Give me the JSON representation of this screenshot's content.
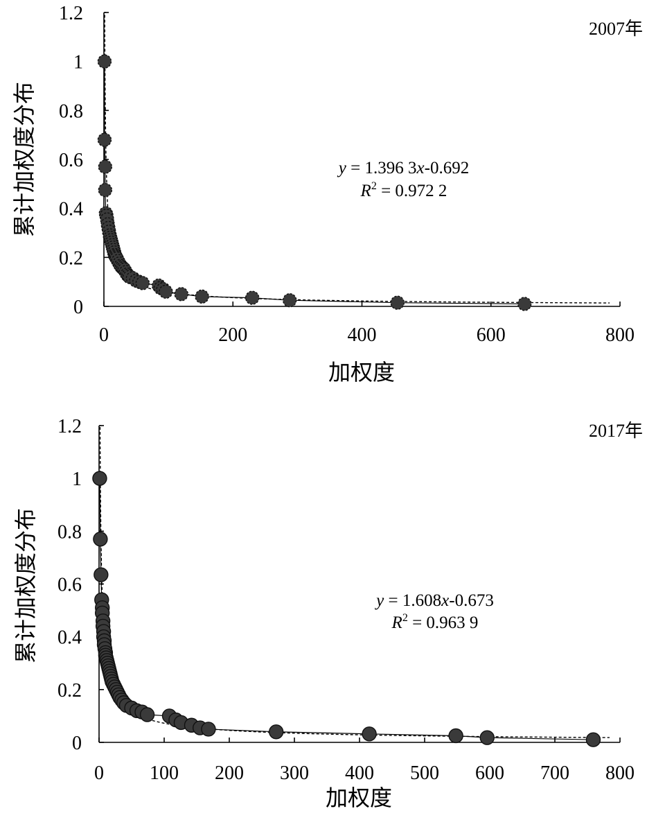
{
  "chart_data": [
    {
      "type": "scatter",
      "year_label": "2007年",
      "xlabel": "加权度",
      "ylabel": "累计加权度分布",
      "xlim": [
        0,
        800
      ],
      "ylim": [
        0,
        1.2
      ],
      "xticks": [
        "0",
        "200",
        "400",
        "600",
        "800"
      ],
      "yticks": [
        "0",
        "0.2",
        "0.4",
        "0.6",
        "0.8",
        "1",
        "1.2"
      ],
      "equation": {
        "y_italic": "y",
        "eq_mid": " = 1.396 3",
        "x_italic": "x",
        "exponent": "-0.692",
        "r_italic": "R",
        "r_sup": "2",
        "r_rest": " = 0.972 2"
      },
      "fit": {
        "a": 1.3963,
        "b": -0.692
      },
      "marker_style": "dashed",
      "x": [
        1,
        1,
        2,
        2,
        3,
        4,
        5,
        6,
        7,
        8,
        9,
        10,
        11,
        12,
        13,
        14,
        15,
        16,
        17,
        18,
        19,
        20,
        22,
        24,
        26,
        28,
        30,
        32,
        34,
        36,
        38,
        40,
        45,
        50,
        55,
        60,
        85,
        88,
        92,
        96,
        120,
        152,
        230,
        288,
        455,
        652
      ],
      "y": [
        1.0,
        0.68,
        0.57,
        0.475,
        0.38,
        0.37,
        0.355,
        0.335,
        0.32,
        0.305,
        0.29,
        0.28,
        0.27,
        0.26,
        0.25,
        0.24,
        0.23,
        0.22,
        0.21,
        0.205,
        0.2,
        0.195,
        0.185,
        0.175,
        0.165,
        0.16,
        0.155,
        0.15,
        0.14,
        0.13,
        0.125,
        0.12,
        0.115,
        0.105,
        0.1,
        0.095,
        0.085,
        0.075,
        0.07,
        0.06,
        0.05,
        0.04,
        0.035,
        0.025,
        0.015,
        0.01
      ]
    },
    {
      "type": "scatter",
      "year_label": "2017年",
      "xlabel": "加权度",
      "ylabel": "累计加权度分布",
      "xlim": [
        0,
        800
      ],
      "ylim": [
        0,
        1.2
      ],
      "xticks": [
        "0",
        "100",
        "200",
        "300",
        "400",
        "500",
        "600",
        "700",
        "800"
      ],
      "yticks": [
        "0",
        "0.2",
        "0.4",
        "0.6",
        "0.8",
        "1",
        "1.2"
      ],
      "equation": {
        "y_italic": "y",
        "eq_mid": " = 1.608",
        "x_italic": "x",
        "exponent": "-0.673",
        "r_italic": "R",
        "r_sup": "2",
        "r_rest": " = 0.963 9"
      },
      "fit": {
        "a": 1.608,
        "b": -0.673
      },
      "marker_style": "solid",
      "x": [
        1,
        2,
        3,
        4,
        5,
        5,
        6,
        6,
        7,
        7,
        8,
        8,
        9,
        10,
        10,
        11,
        12,
        13,
        14,
        15,
        16,
        17,
        18,
        19,
        20,
        22,
        24,
        26,
        28,
        30,
        32,
        35,
        38,
        42,
        50,
        58,
        66,
        74,
        108,
        118,
        126,
        142,
        155,
        168,
        272,
        415,
        548,
        596,
        759
      ],
      "y": [
        1.0,
        0.77,
        0.635,
        0.54,
        0.51,
        0.49,
        0.46,
        0.44,
        0.42,
        0.4,
        0.385,
        0.37,
        0.355,
        0.34,
        0.33,
        0.32,
        0.31,
        0.3,
        0.29,
        0.28,
        0.27,
        0.26,
        0.25,
        0.24,
        0.23,
        0.22,
        0.21,
        0.2,
        0.19,
        0.18,
        0.17,
        0.16,
        0.15,
        0.14,
        0.13,
        0.12,
        0.115,
        0.105,
        0.1,
        0.085,
        0.075,
        0.065,
        0.055,
        0.05,
        0.04,
        0.032,
        0.025,
        0.018,
        0.01
      ]
    }
  ]
}
